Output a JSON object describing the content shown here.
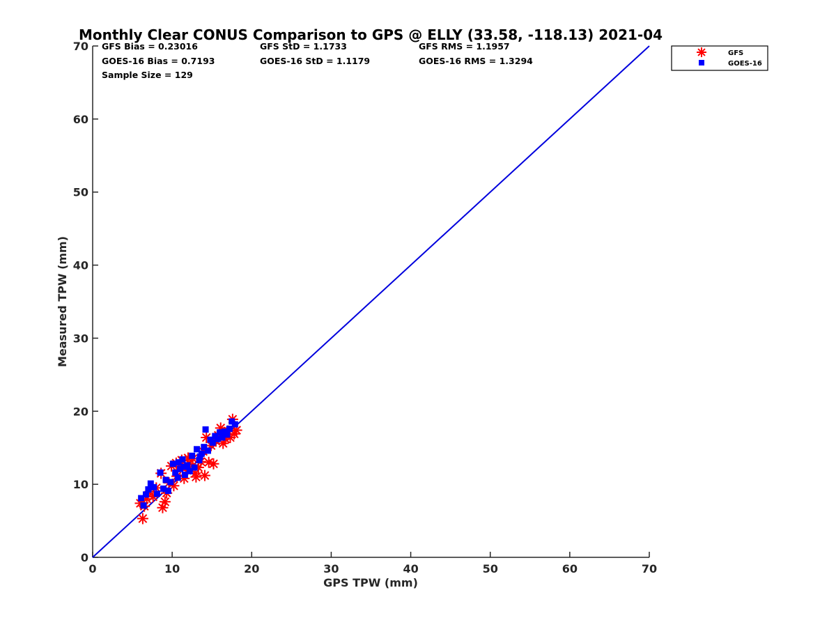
{
  "chart_data": {
    "type": "scatter",
    "title": "Monthly Clear CONUS Comparison to GPS @ ELLY (33.58, -118.13) 2021-04",
    "xlabel": "GPS TPW (mm)",
    "ylabel": "Measured TPW (mm)",
    "xlim": [
      0,
      70
    ],
    "ylim": [
      0,
      70
    ],
    "xticks": [
      "0",
      "10",
      "20",
      "30",
      "40",
      "50",
      "60",
      "70"
    ],
    "yticks": [
      "0",
      "10",
      "20",
      "30",
      "40",
      "50",
      "60",
      "70"
    ],
    "grid": false,
    "legend_position": "top-right",
    "stats": {
      "gfs_bias": "GFS Bias = 0.23016",
      "gfs_std": "GFS StD = 1.1733",
      "gfs_rms": "GFS RMS = 1.1957",
      "goes_bias": "GOES-16 Bias = 0.7193",
      "goes_std": "GOES-16 StD = 1.1179",
      "goes_rms": "GOES-16 RMS = 1.3294",
      "sample_size": "Sample Size = 129"
    },
    "reference_line": {
      "x": [
        0,
        70
      ],
      "y": [
        0,
        70
      ],
      "color": "#0000dd"
    },
    "series": [
      {
        "name": "GFS",
        "marker": "asterisk",
        "color": "#ff0000",
        "points": [
          [
            6.0,
            7.4
          ],
          [
            6.3,
            5.3
          ],
          [
            6.5,
            7.0
          ],
          [
            6.8,
            8.0
          ],
          [
            7.2,
            9.0
          ],
          [
            7.6,
            8.3
          ],
          [
            8.0,
            9.5
          ],
          [
            8.6,
            11.5
          ],
          [
            8.8,
            6.8
          ],
          [
            9.1,
            7.6
          ],
          [
            9.3,
            8.8
          ],
          [
            9.6,
            10.2
          ],
          [
            9.9,
            12.5
          ],
          [
            10.2,
            9.8
          ],
          [
            10.6,
            11.1
          ],
          [
            10.9,
            12.4
          ],
          [
            11.2,
            13.3
          ],
          [
            11.5,
            10.8
          ],
          [
            11.9,
            11.9
          ],
          [
            12.2,
            12.8
          ],
          [
            12.6,
            13.5
          ],
          [
            12.9,
            11.5
          ],
          [
            13.3,
            12.3
          ],
          [
            13.6,
            13.1
          ],
          [
            13.9,
            14.5
          ],
          [
            14.1,
            11.2
          ],
          [
            14.3,
            16.4
          ],
          [
            14.6,
            13.0
          ],
          [
            14.9,
            15.3
          ],
          [
            15.2,
            12.8
          ],
          [
            15.5,
            15.9
          ],
          [
            15.8,
            16.7
          ],
          [
            16.1,
            17.7
          ],
          [
            16.4,
            15.6
          ],
          [
            16.7,
            16.2
          ],
          [
            17.0,
            17.3
          ],
          [
            17.3,
            16.4
          ],
          [
            17.6,
            18.9
          ],
          [
            17.8,
            16.9
          ],
          [
            18.1,
            17.4
          ],
          [
            13.0,
            11.0
          ],
          [
            12.0,
            13.6
          ],
          [
            10.5,
            12.9
          ]
        ]
      },
      {
        "name": "GOES-16",
        "marker": "square",
        "color": "#0000ff",
        "points": [
          [
            6.1,
            8.1
          ],
          [
            6.4,
            7.1
          ],
          [
            6.7,
            8.6
          ],
          [
            7.0,
            9.3
          ],
          [
            7.3,
            10.1
          ],
          [
            7.7,
            9.6
          ],
          [
            8.1,
            8.7
          ],
          [
            8.5,
            11.6
          ],
          [
            8.9,
            9.4
          ],
          [
            9.2,
            10.6
          ],
          [
            9.5,
            9.1
          ],
          [
            9.8,
            10.3
          ],
          [
            10.1,
            12.8
          ],
          [
            10.4,
            11.6
          ],
          [
            10.7,
            10.9
          ],
          [
            11.0,
            12.1
          ],
          [
            11.3,
            13.4
          ],
          [
            11.6,
            11.3
          ],
          [
            11.9,
            12.6
          ],
          [
            12.2,
            11.8
          ],
          [
            12.5,
            13.9
          ],
          [
            12.8,
            12.3
          ],
          [
            13.1,
            14.8
          ],
          [
            13.4,
            13.3
          ],
          [
            13.7,
            14.2
          ],
          [
            14.0,
            15.1
          ],
          [
            14.2,
            17.5
          ],
          [
            14.5,
            14.6
          ],
          [
            14.8,
            16.1
          ],
          [
            15.1,
            15.7
          ],
          [
            15.4,
            16.6
          ],
          [
            15.7,
            16.2
          ],
          [
            16.0,
            17.1
          ],
          [
            16.3,
            16.4
          ],
          [
            16.6,
            17.2
          ],
          [
            16.9,
            16.8
          ],
          [
            17.2,
            17.6
          ],
          [
            17.5,
            18.6
          ],
          [
            17.9,
            18.2
          ],
          [
            11.5,
            12.4
          ],
          [
            13.5,
            13.8
          ],
          [
            10.8,
            13.0
          ]
        ]
      }
    ]
  }
}
